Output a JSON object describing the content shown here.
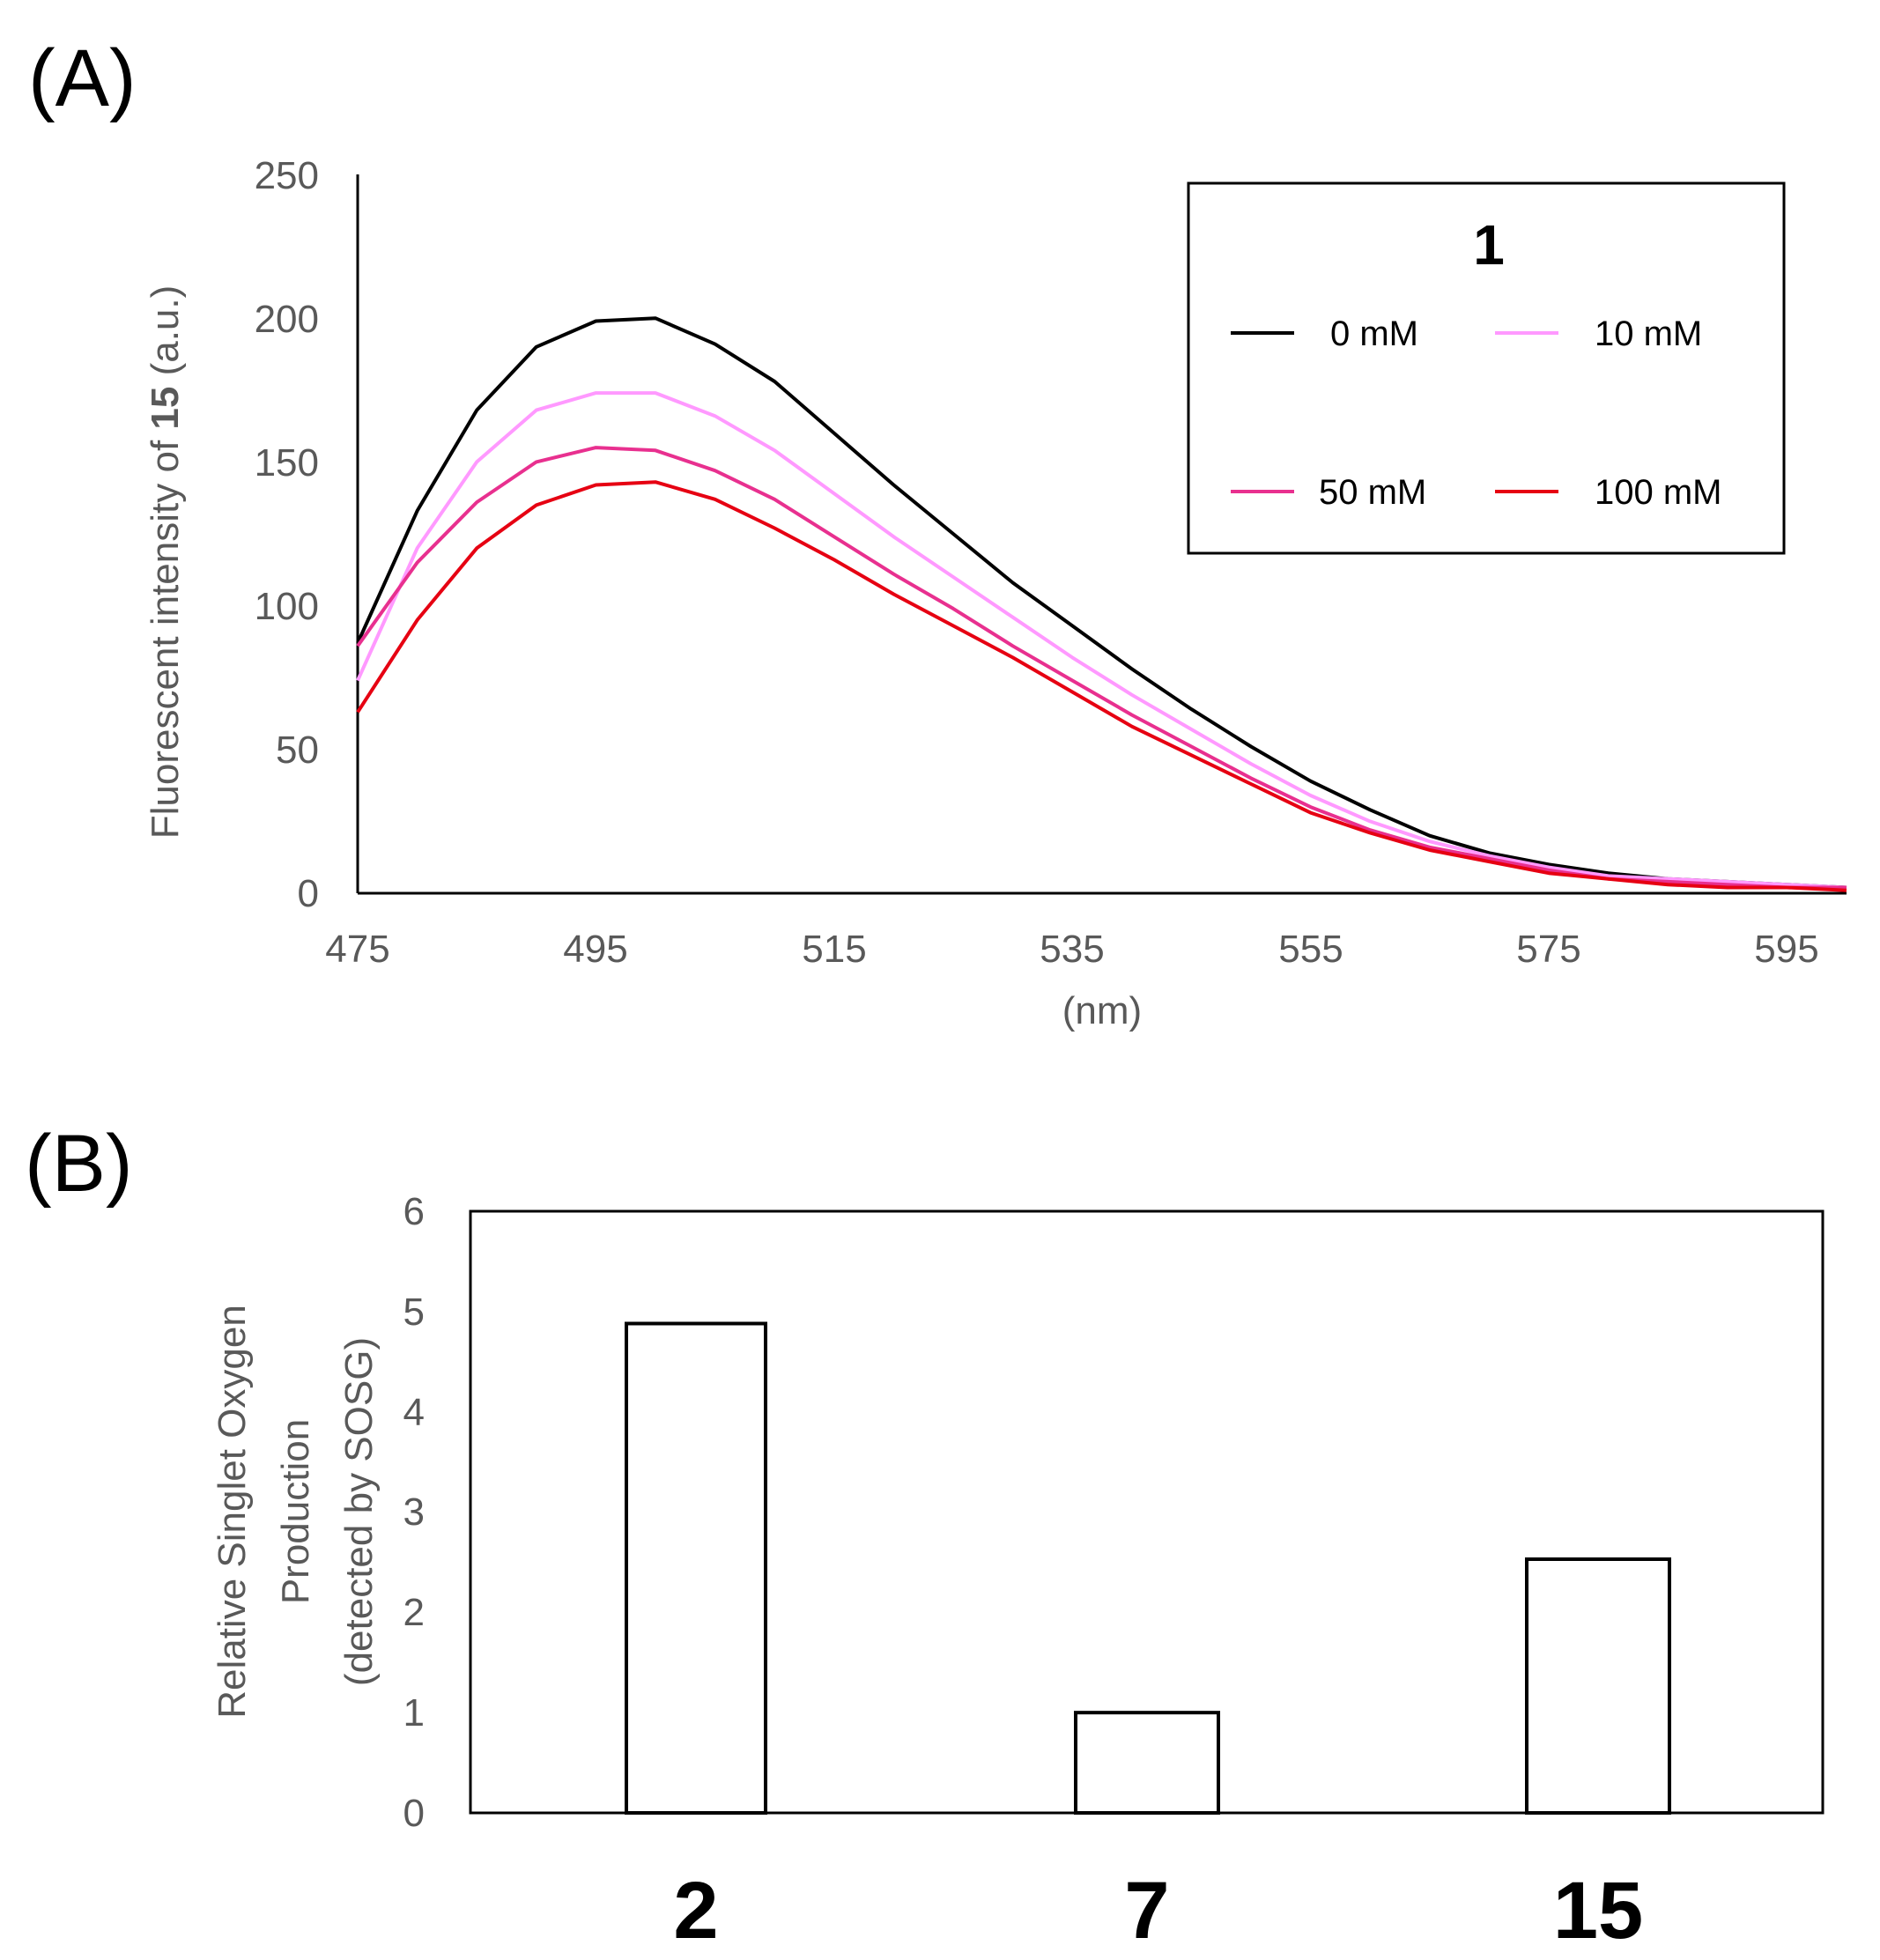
{
  "colors": {
    "series_0": "#000000",
    "series_10": "#FF99FF",
    "series_50": "#E8308F",
    "series_100": "#E60012",
    "axis": "#000000",
    "tick_text": "#595959"
  },
  "chart_data": [
    {
      "panel": "(A)",
      "type": "line",
      "title": "",
      "xlabel": "(nm)",
      "ylabel_parts": [
        "Fluorescent intensity of ",
        "15",
        " (a.u.)"
      ],
      "xlim": [
        475,
        600
      ],
      "ylim": [
        0,
        250
      ],
      "xticks": [
        475,
        495,
        515,
        535,
        555,
        575,
        595
      ],
      "yticks": [
        0,
        50,
        100,
        150,
        200,
        250
      ],
      "legend": {
        "title": "1",
        "placement": "top-right"
      },
      "x": [
        475,
        480,
        485,
        490,
        495,
        500,
        505,
        510,
        515,
        520,
        525,
        530,
        535,
        540,
        545,
        550,
        555,
        560,
        565,
        570,
        575,
        580,
        585,
        590,
        595,
        600
      ],
      "series": [
        {
          "name": "0 mM",
          "color_key": "series_0",
          "values": [
            87,
            133,
            168,
            190,
            199,
            200,
            191,
            178,
            160,
            142,
            125,
            108,
            93,
            78,
            64,
            51,
            39,
            29,
            20,
            14,
            10,
            7,
            5,
            4,
            3,
            2
          ]
        },
        {
          "name": "10 mM",
          "color_key": "series_10",
          "values": [
            74,
            120,
            150,
            168,
            174,
            174,
            166,
            154,
            139,
            124,
            110,
            96,
            82,
            69,
            57,
            45,
            34,
            25,
            18,
            13,
            9,
            6,
            5,
            4,
            3,
            2
          ]
        },
        {
          "name": "50 mM",
          "color_key": "series_50",
          "values": [
            86,
            115,
            136,
            150,
            155,
            154,
            147,
            137,
            124,
            111,
            99,
            86,
            74,
            62,
            51,
            40,
            30,
            22,
            16,
            12,
            8,
            5,
            4,
            3,
            2,
            2
          ]
        },
        {
          "name": "100 mM",
          "color_key": "series_100",
          "values": [
            63,
            95,
            120,
            135,
            142,
            143,
            137,
            127,
            116,
            104,
            93,
            82,
            70,
            58,
            48,
            38,
            28,
            21,
            15,
            11,
            7,
            5,
            3,
            2,
            2,
            1
          ]
        }
      ]
    },
    {
      "panel": "(B)",
      "type": "bar",
      "title": "",
      "xlabel": "",
      "ylabel_lines": [
        "Relative Singlet Oxygen",
        "Production",
        "(detected by SOSG)"
      ],
      "ylim": [
        0,
        6
      ],
      "yticks": [
        0,
        1,
        2,
        3,
        4,
        5,
        6
      ],
      "categories": [
        "2",
        "7",
        "15"
      ],
      "values": [
        4.88,
        1.0,
        2.53
      ]
    }
  ]
}
